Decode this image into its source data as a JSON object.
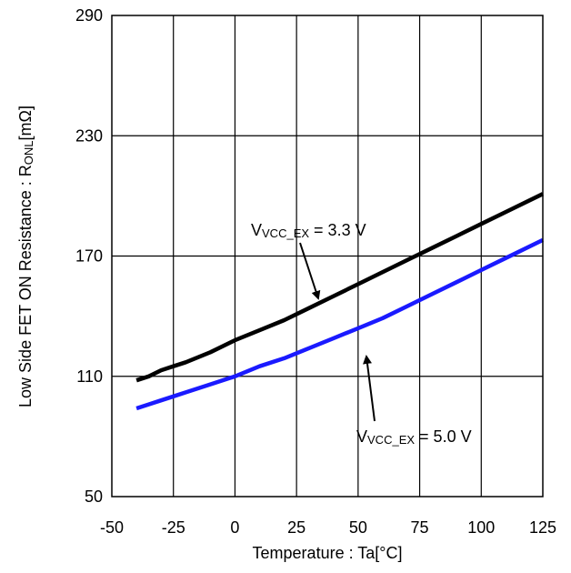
{
  "chart_data": {
    "type": "line",
    "title": "",
    "xlabel": "Temperature : Ta[°C]",
    "ylabel": {
      "main": "Low Side FET ON Resistance : R",
      "sub": "ONL",
      "unit": "[mΩ]"
    },
    "xlim": [
      -50,
      125
    ],
    "ylim": [
      50,
      290
    ],
    "xticks": [
      -50,
      -25,
      0,
      25,
      50,
      75,
      100,
      125
    ],
    "yticks": [
      50,
      110,
      170,
      230,
      290
    ],
    "xtick_labels": [
      "-50",
      "-25",
      "0",
      "25",
      "50",
      "75",
      "100",
      "125"
    ],
    "ytick_labels": [
      "50",
      "110",
      "170",
      "230",
      "290"
    ],
    "grid": true,
    "series": [
      {
        "color": "#000000",
        "x": [
          -40,
          -35,
          -30,
          -25,
          -20,
          -10,
          0,
          10,
          20,
          30,
          40,
          50,
          60,
          70,
          80,
          90,
          100,
          110,
          125
        ],
        "y": [
          108,
          110,
          113,
          115,
          117,
          122,
          128,
          133,
          138,
          144,
          150,
          156,
          162,
          168,
          174,
          180,
          186,
          192,
          201
        ]
      },
      {
        "color": "#1a1aff",
        "x": [
          -40,
          -35,
          -30,
          -25,
          -20,
          -10,
          0,
          10,
          20,
          30,
          40,
          50,
          60,
          70,
          80,
          90,
          100,
          110,
          125
        ],
        "y": [
          94,
          96,
          98,
          100,
          102,
          106,
          110,
          115,
          119,
          124,
          129,
          134,
          139,
          145,
          151,
          157,
          163,
          169,
          178
        ]
      }
    ],
    "annotations": [
      {
        "label_main": "V",
        "label_sub": "VCC_EX",
        "label_rest": " = 3.3 V"
      },
      {
        "label_main": "V",
        "label_sub": "VCC_EX",
        "label_rest": " = 5.0 V"
      }
    ]
  }
}
